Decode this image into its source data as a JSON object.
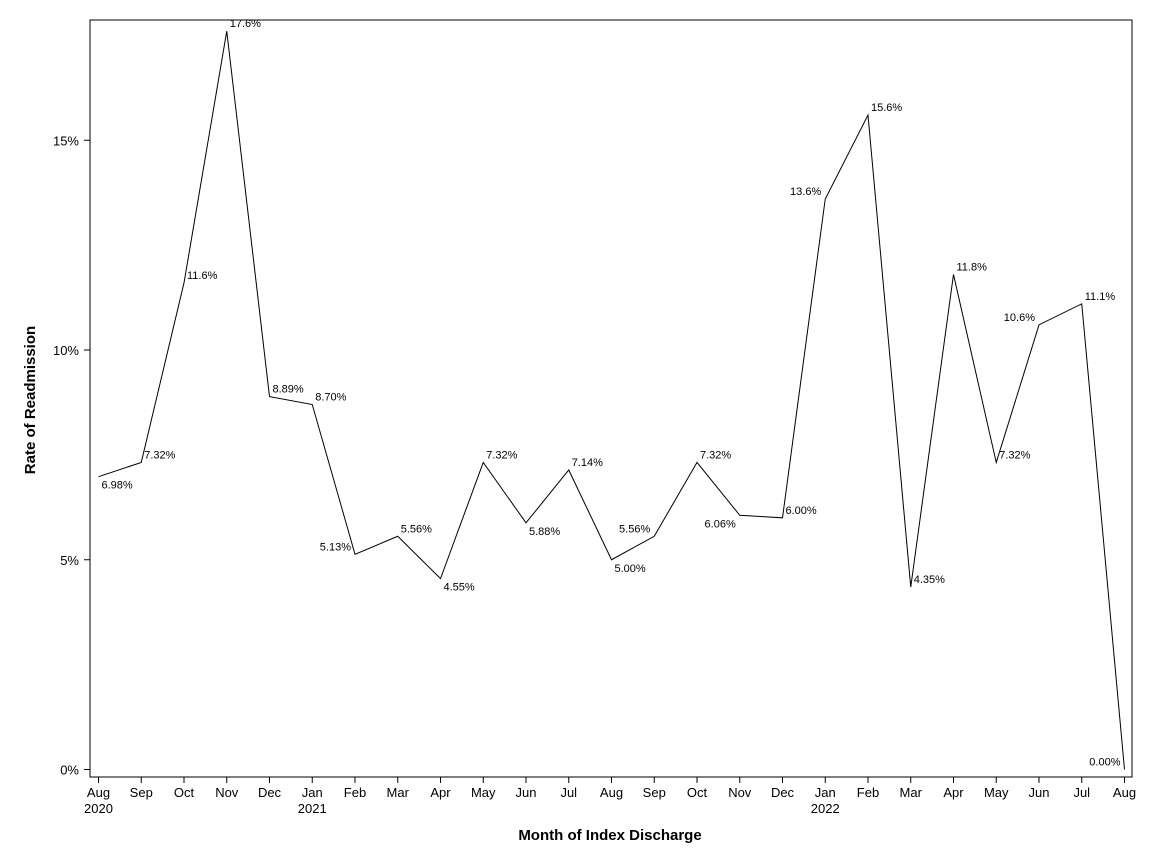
{
  "chart_data": {
    "type": "line",
    "xlabel": "Month of Index Discharge",
    "ylabel": "Rate of Readmission",
    "ylim": [
      0,
      18
    ],
    "yticks": [
      0,
      5,
      10,
      15
    ],
    "ytick_labels": [
      "0%",
      "5%",
      "10%",
      "15%"
    ],
    "grid": false,
    "line_color": "#000000",
    "x": [
      "Aug 2020",
      "Sep 2020",
      "Oct 2020",
      "Nov 2020",
      "Dec 2020",
      "Jan 2021",
      "Feb 2021",
      "Mar 2021",
      "Apr 2021",
      "May 2021",
      "Jun 2021",
      "Jul 2021",
      "Aug 2021",
      "Sep 2021",
      "Oct 2021",
      "Nov 2021",
      "Dec 2021",
      "Jan 2022",
      "Feb 2022",
      "Mar 2022",
      "Apr 2022",
      "May 2022",
      "Jun 2022",
      "Jul 2022",
      "Aug 2022"
    ],
    "month_labels": [
      "Aug",
      "Sep",
      "Oct",
      "Nov",
      "Dec",
      "Jan",
      "Feb",
      "Mar",
      "Apr",
      "May",
      "Jun",
      "Jul",
      "Aug",
      "Sep",
      "Oct",
      "Nov",
      "Dec",
      "Jan",
      "Feb",
      "Mar",
      "Apr",
      "May",
      "Jun",
      "Jul",
      "Aug"
    ],
    "year_labels": [
      "2020",
      "",
      "",
      "",
      "",
      "2021",
      "",
      "",
      "",
      "",
      "",
      "",
      "",
      "",
      "",
      "",
      "",
      "2022",
      "",
      "",
      "",
      "",
      "",
      "",
      ""
    ],
    "values": [
      6.98,
      7.32,
      11.6,
      17.6,
      8.89,
      8.7,
      5.13,
      5.56,
      4.55,
      7.32,
      5.88,
      7.14,
      5.0,
      5.56,
      7.32,
      6.06,
      6.0,
      13.6,
      15.6,
      4.35,
      11.8,
      7.32,
      10.6,
      11.1,
      0.0
    ],
    "data_labels": [
      "6.98%",
      "7.32%",
      "11.6%",
      "17.6%",
      "8.89%",
      "8.70%",
      "5.13%",
      "5.56%",
      "4.55%",
      "7.32%",
      "5.88%",
      "7.14%",
      "5.00%",
      "5.56%",
      "7.32%",
      "6.06%",
      "6.00%",
      "13.6%",
      "15.6%",
      "4.35%",
      "11.8%",
      "7.32%",
      "10.6%",
      "11.1%",
      "0.00%"
    ]
  }
}
